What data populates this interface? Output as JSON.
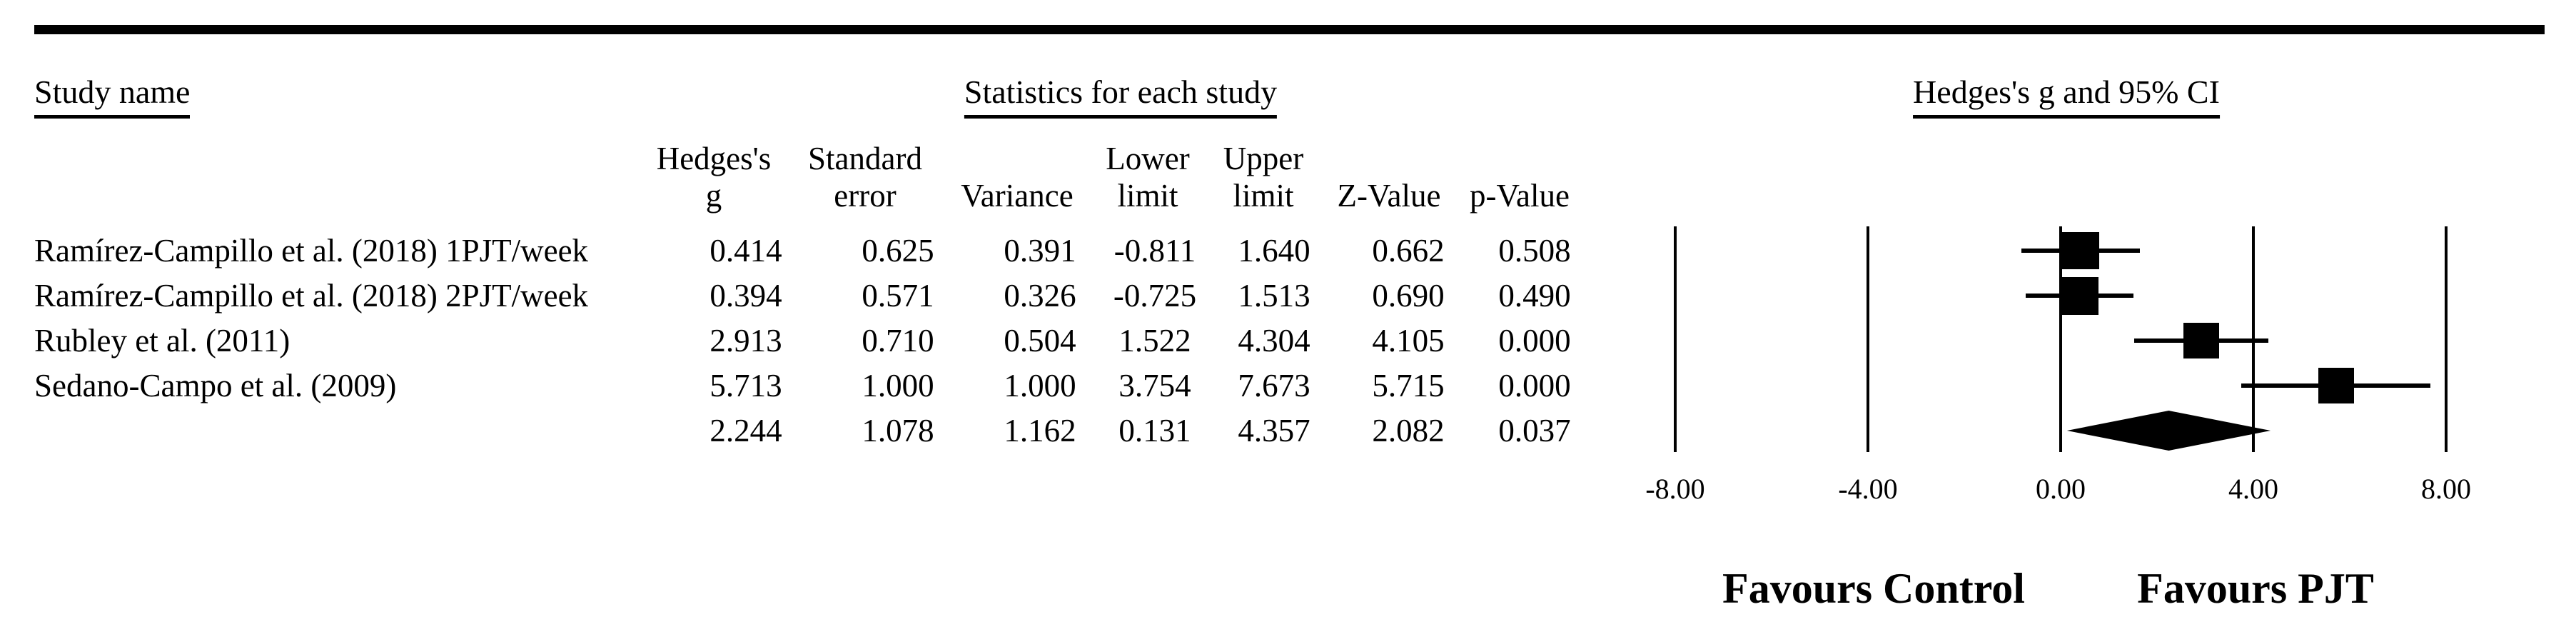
{
  "header": {
    "study_col": "Study name",
    "stats_group": "Statistics for each study",
    "plot_group": "Hedges's g and 95% CI"
  },
  "table": {
    "columns": [
      {
        "line1": "Hedges's",
        "line2": "g"
      },
      {
        "line1": "Standard",
        "line2": "error"
      },
      {
        "line1": "",
        "line2": "Variance"
      },
      {
        "line1": "Lower",
        "line2": "limit"
      },
      {
        "line1": "Upper",
        "line2": "limit"
      },
      {
        "line1": "",
        "line2": "Z-Value"
      },
      {
        "line1": "",
        "line2": "p-Value"
      }
    ],
    "rows": [
      {
        "study": "Ramírez-Campillo et al. (2018) 1PJT/week",
        "cells": [
          "0.414",
          "0.625",
          "0.391",
          "-0.811",
          "1.640",
          "0.662",
          "0.508"
        ],
        "summary": false
      },
      {
        "study": "Ramírez-Campillo et al. (2018) 2PJT/week",
        "cells": [
          "0.394",
          "0.571",
          "0.326",
          "-0.725",
          "1.513",
          "0.690",
          "0.490"
        ],
        "summary": false
      },
      {
        "study": "Rubley et al. (2011)",
        "cells": [
          "2.913",
          "0.710",
          "0.504",
          "1.522",
          "4.304",
          "4.105",
          "0.000"
        ],
        "summary": false
      },
      {
        "study": "Sedano-Campo et al. (2009)",
        "cells": [
          "5.713",
          "1.000",
          "1.000",
          "3.754",
          "7.673",
          "5.715",
          "0.000"
        ],
        "summary": false
      },
      {
        "study": "",
        "cells": [
          "2.244",
          "1.078",
          "1.162",
          "0.131",
          "4.357",
          "2.082",
          "0.037"
        ],
        "summary": true
      }
    ]
  },
  "chart_data": {
    "type": "scatter",
    "subtype": "forest_plot",
    "title": "Hedges's g and 95% CI",
    "effect_measure": "Hedges's g",
    "axis": {
      "min": -8,
      "max": 8,
      "ticks": [
        -8,
        -4,
        0,
        4,
        8
      ],
      "tick_labels": [
        "-8.00",
        "-4.00",
        "0.00",
        "4.00",
        "8.00"
      ],
      "grid": "vertical-lines-at-ticks"
    },
    "studies": [
      {
        "name": "Ramírez-Campillo et al. (2018) 1PJT/week",
        "g": 0.414,
        "lower": -0.811,
        "upper": 1.64,
        "marker_px": 52
      },
      {
        "name": "Ramírez-Campillo et al. (2018) 2PJT/week",
        "g": 0.394,
        "lower": -0.725,
        "upper": 1.513,
        "marker_px": 53
      },
      {
        "name": "Rubley et al. (2011)",
        "g": 2.913,
        "lower": 1.522,
        "upper": 4.304,
        "marker_px": 50
      },
      {
        "name": "Sedano-Campo et al. (2009)",
        "g": 5.713,
        "lower": 3.754,
        "upper": 7.673,
        "marker_px": 50
      }
    ],
    "summary": {
      "g": 2.244,
      "lower": 0.131,
      "upper": 4.357
    },
    "footer_labels": {
      "left": "Favours Control",
      "right": "Favours PJT"
    }
  },
  "footer": {
    "left": "Favours Control",
    "right": "Favours PJT"
  }
}
